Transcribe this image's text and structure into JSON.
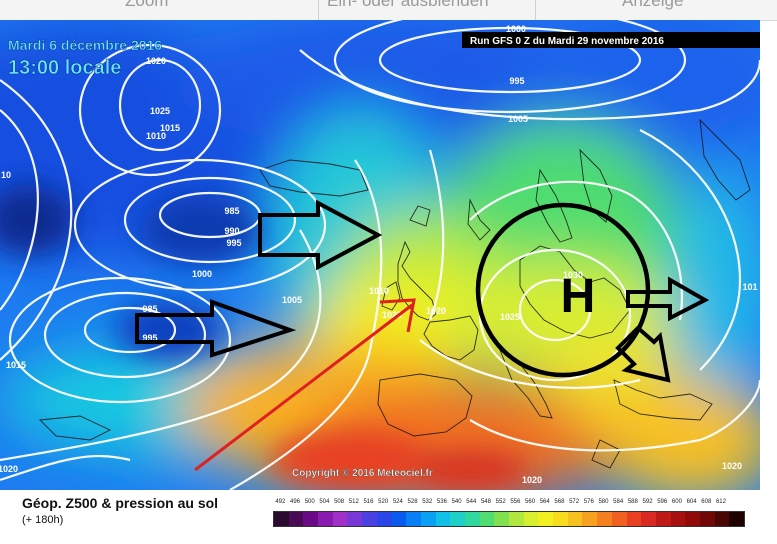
{
  "topbar": {
    "items": [
      "Zoom",
      "Ein- oder ausblenden",
      "Anzeige"
    ]
  },
  "map": {
    "date_label": "Mardi 6 décembre 2016",
    "time_label": "13:00 locale",
    "run_label": "Run GFS 0 Z du Mardi 29 novembre 2016",
    "copyright": "Copyright © 2016 Meteociel.fr",
    "high_marker": "H",
    "isobar_labels": [
      "1000",
      "1020",
      "995",
      "1005",
      "1025",
      "1015",
      "1010",
      "10",
      "985",
      "990",
      "995",
      "1000",
      "1005",
      "985",
      "995",
      "1010",
      "1030",
      "1025",
      "1020",
      "1015",
      "1020",
      "1020",
      "1020",
      "1020",
      "101"
    ],
    "colors": {
      "red_arrow": "#e02020",
      "black_arrows": "#000000",
      "isobars": "#ffffff",
      "label_blue": "#33ccff"
    }
  },
  "legend": {
    "title": "Géop. Z500 & pression au sol",
    "subtitle": "(+ 180h)",
    "scale_values": [
      "492",
      "496",
      "500",
      "504",
      "508",
      "512",
      "516",
      "520",
      "524",
      "528",
      "532",
      "536",
      "540",
      "544",
      "548",
      "552",
      "556",
      "560",
      "564",
      "568",
      "572",
      "576",
      "580",
      "584",
      "588",
      "592",
      "596",
      "600",
      "604",
      "608",
      "612"
    ],
    "scale_colors": [
      "#2a0a2e",
      "#4a0a55",
      "#6a0a85",
      "#8a1ab0",
      "#a030c8",
      "#7838d8",
      "#4c40e0",
      "#2a46e8",
      "#0a5af0",
      "#0a7ef4",
      "#0aa0f4",
      "#10c0e8",
      "#20d0c8",
      "#30d8a0",
      "#50dc70",
      "#80e050",
      "#b0e840",
      "#d8ee30",
      "#f2f020",
      "#f8dc20",
      "#f8c020",
      "#f8a020",
      "#f68020",
      "#f06020",
      "#e84020",
      "#d82a20",
      "#c01a18",
      "#a81010",
      "#900a0a",
      "#700808",
      "#4a0505",
      "#200000"
    ]
  }
}
